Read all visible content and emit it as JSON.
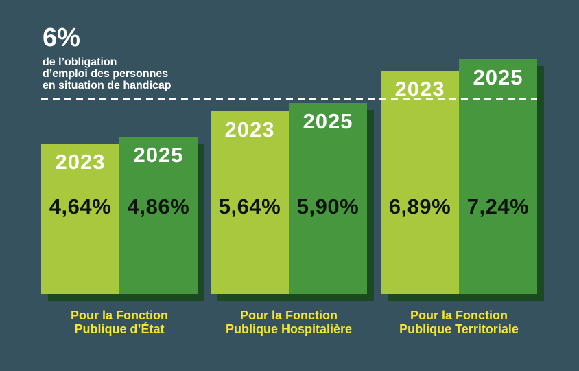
{
  "header": {
    "headline": "6%",
    "subtitle_lines": [
      "de l’obligation",
      "d’emploi des personnes",
      "en situation de handicap"
    ]
  },
  "chart_data": {
    "type": "bar",
    "title": "6% de l’obligation d’emploi des personnes en situation de handicap",
    "unit": "%",
    "threshold": {
      "value": 6,
      "label": "6%"
    },
    "categories": [
      "Pour la Fonction Publique d’État",
      "Pour la Fonction Publique Hospitalière",
      "Pour la Fonction Publique Territoriale"
    ],
    "category_lines": [
      [
        "Pour la Fonction",
        "Publique d’État"
      ],
      [
        "Pour la Fonction",
        "Publique Hospitalière"
      ],
      [
        "Pour la Fonction",
        "Publique Territoriale"
      ]
    ],
    "series": [
      {
        "name": "2023",
        "values": [
          4.64,
          5.64,
          6.89
        ],
        "labels": [
          "4,64%",
          "5,64%",
          "6,89%"
        ],
        "color": "#a8c93e"
      },
      {
        "name": "2025",
        "values": [
          4.86,
          5.9,
          7.24
        ],
        "labels": [
          "4,86%",
          "5,90%",
          "7,24%"
        ],
        "color": "#47973e"
      }
    ],
    "ylim": [
      0,
      7.6
    ],
    "grid": false,
    "legend": "series names shown inside bar tops"
  },
  "colors": {
    "background": "#36525f",
    "bar_2023": "#a8c93e",
    "bar_2025": "#47973e",
    "bar_shadow": "#1b4a22",
    "threshold_line": "#ffffff",
    "category_label": "#f9e62a",
    "value_text": "#0d140d",
    "year_text": "#ffffff",
    "header_text": "#ffffff"
  }
}
